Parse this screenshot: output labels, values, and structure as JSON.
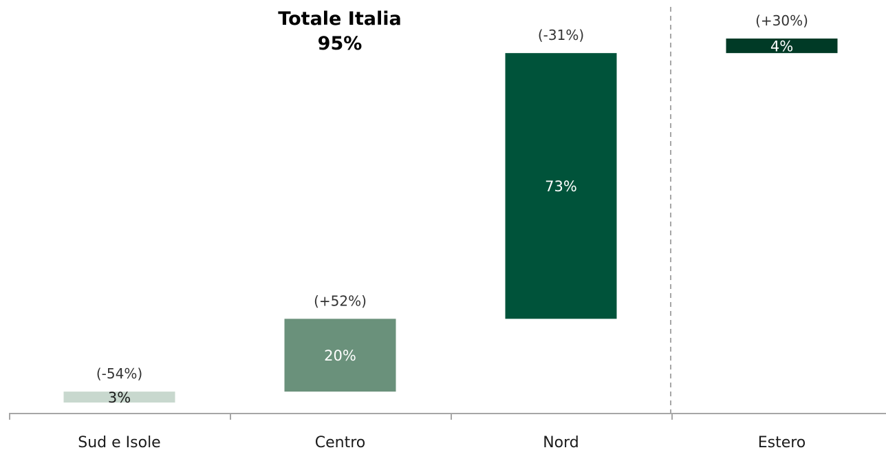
{
  "chart_data": {
    "type": "waterfall",
    "title": "Totale Italia",
    "title_value": "95%",
    "categories": [
      "Sud e Isole",
      "Centro",
      "Nord",
      "Estero"
    ],
    "values": [
      3,
      20,
      73,
      4
    ],
    "value_labels": [
      "3%",
      "20%",
      "73%",
      "4%"
    ],
    "changes": [
      "(-54%)",
      "(+52%)",
      "(-31%)",
      "(+30%)"
    ],
    "colors": [
      "#c8d8ce",
      "#6a917b",
      "#00533a",
      "#003a26"
    ],
    "value_label_colors": [
      "#1a1a1a",
      "#ffffff",
      "#ffffff",
      "#ffffff"
    ],
    "ylim": [
      0,
      100
    ],
    "grid": false,
    "separator_before": "Estero"
  }
}
